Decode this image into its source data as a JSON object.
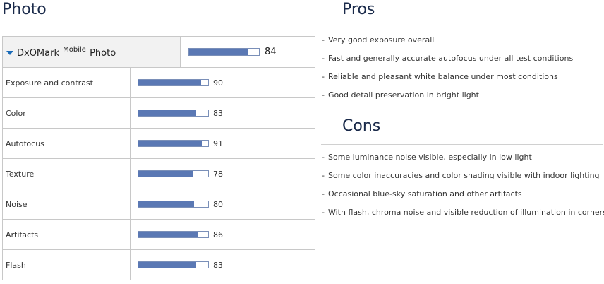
{
  "headings": {
    "photo": "Photo",
    "pros": "Pros",
    "cons": "Cons"
  },
  "overall": {
    "brand": "DxOMark",
    "superscript": "Mobile",
    "category": "Photo",
    "score": 84,
    "fill_fraction": 0.84
  },
  "subscores": [
    {
      "label": "Exposure and contrast",
      "score": 90,
      "fill_fraction": 0.9
    },
    {
      "label": "Color",
      "score": 83,
      "fill_fraction": 0.83
    },
    {
      "label": "Autofocus",
      "score": 91,
      "fill_fraction": 0.91
    },
    {
      "label": "Texture",
      "score": 78,
      "fill_fraction": 0.78
    },
    {
      "label": "Noise",
      "score": 80,
      "fill_fraction": 0.8
    },
    {
      "label": "Artifacts",
      "score": 86,
      "fill_fraction": 0.86
    },
    {
      "label": "Flash",
      "score": 83,
      "fill_fraction": 0.83
    }
  ],
  "pros": [
    "Very good exposure overall",
    "Fast and generally accurate autofocus under all test conditions",
    "Reliable and pleasant white balance under most conditions",
    "Good detail preservation in bright light"
  ],
  "cons": [
    "Some luminance noise visible, especially in low light",
    "Some color inaccuracies and color shading visible with indoor lighting",
    "Occasional blue-sky saturation and other artifacts",
    "With flash, chroma noise and visible reduction of illumination in corners"
  ],
  "list_bullet": "-",
  "colors": {
    "bar_fill": "#5a78b4",
    "caret": "#1a6bb8",
    "heading": "#1a2a4a"
  },
  "icons": {
    "expand": "caret-down-icon"
  }
}
